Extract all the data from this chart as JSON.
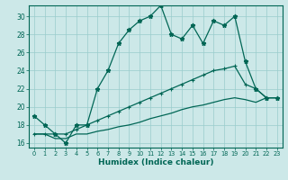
{
  "xlabel": "Humidex (Indice chaleur)",
  "bg_color": "#cce8e8",
  "grid_color": "#99cccc",
  "line_color": "#006655",
  "xlim": [
    -0.5,
    23.5
  ],
  "ylim": [
    15.5,
    31.2
  ],
  "xticks": [
    0,
    1,
    2,
    3,
    4,
    5,
    6,
    7,
    8,
    9,
    10,
    11,
    12,
    13,
    14,
    15,
    16,
    17,
    18,
    19,
    20,
    21,
    22,
    23
  ],
  "yticks": [
    16,
    18,
    20,
    22,
    24,
    26,
    28,
    30
  ],
  "line1_x": [
    0,
    1,
    2,
    3,
    4,
    5,
    6,
    7,
    8,
    9,
    10,
    11,
    12,
    13,
    14,
    15,
    16,
    17,
    18,
    19,
    20,
    21,
    22,
    23
  ],
  "line1_y": [
    19.0,
    18.0,
    17.0,
    16.0,
    18.0,
    18.0,
    22.0,
    24.0,
    27.0,
    28.5,
    29.5,
    30.0,
    31.2,
    28.0,
    27.5,
    29.0,
    27.0,
    29.5,
    29.0,
    30.0,
    25.0,
    22.0,
    21.0,
    21.0
  ],
  "line2_x": [
    0,
    1,
    2,
    3,
    4,
    5,
    6,
    7,
    8,
    9,
    10,
    11,
    12,
    13,
    14,
    15,
    16,
    17,
    18,
    19,
    20,
    21,
    22,
    23
  ],
  "line2_y": [
    17.0,
    17.0,
    17.0,
    17.0,
    17.5,
    18.0,
    18.5,
    19.0,
    19.5,
    20.0,
    20.5,
    21.0,
    21.5,
    22.0,
    22.5,
    23.0,
    23.5,
    24.0,
    24.2,
    24.5,
    22.5,
    22.0,
    21.0,
    21.0
  ],
  "line3_x": [
    0,
    1,
    2,
    3,
    4,
    5,
    6,
    7,
    8,
    9,
    10,
    11,
    12,
    13,
    14,
    15,
    16,
    17,
    18,
    19,
    20,
    21,
    22,
    23
  ],
  "line3_y": [
    17.0,
    17.0,
    16.5,
    16.5,
    17.0,
    17.0,
    17.3,
    17.5,
    17.8,
    18.0,
    18.3,
    18.7,
    19.0,
    19.3,
    19.7,
    20.0,
    20.2,
    20.5,
    20.8,
    21.0,
    20.8,
    20.5,
    21.0,
    21.0
  ]
}
